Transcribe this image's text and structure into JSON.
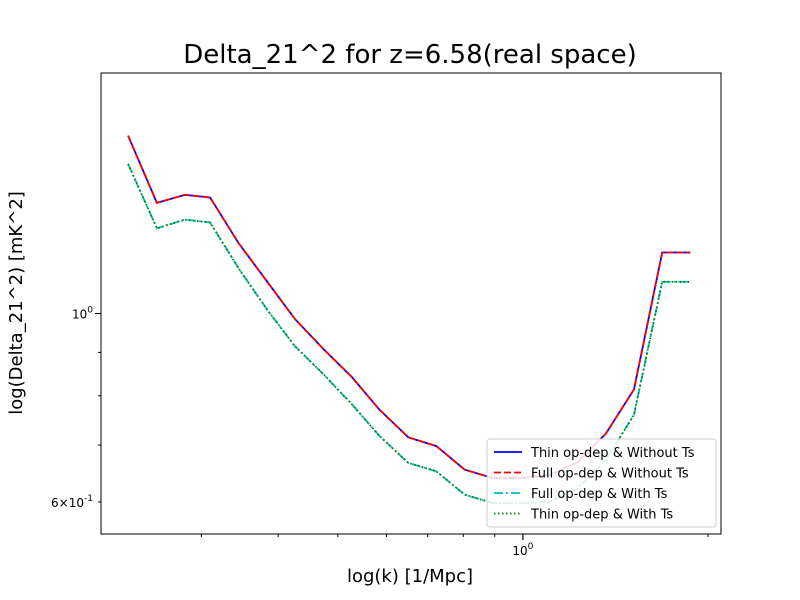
{
  "chart_data": {
    "type": "line",
    "title": "Delta_21^2 for z=6.58(real space)",
    "xlabel": "log(k) [1/Mpc]",
    "ylabel": "log(Delta_21^2) [mK^2]",
    "xscale": "log",
    "yscale": "log",
    "xlim": [
      0.206,
      2.1
    ],
    "ylim": [
      0.55,
      1.92
    ],
    "x_tick_labels": [
      {
        "label": "10^0",
        "value": 1.0
      }
    ],
    "y_tick_labels": [
      {
        "label": "10^0",
        "value": 1.0
      },
      {
        "label": "6×10^-1",
        "value": 0.6
      }
    ],
    "x": [
      0.228,
      0.254,
      0.282,
      0.31,
      0.345,
      0.384,
      0.426,
      0.474,
      0.527,
      0.585,
      0.651,
      0.723,
      0.804,
      0.893,
      0.993,
      1.104,
      1.227,
      1.364,
      1.516,
      1.685,
      1.873
    ],
    "series": [
      {
        "name": "Thin op-dep & Without Ts",
        "color": "#0000ff",
        "dash": "solid",
        "values": [
          1.62,
          1.35,
          1.38,
          1.37,
          1.21,
          1.09,
          0.985,
          0.908,
          0.842,
          0.77,
          0.715,
          0.698,
          0.655,
          0.64,
          0.64,
          0.645,
          0.668,
          0.722,
          0.814,
          1.18,
          1.18
        ]
      },
      {
        "name": "Full op-dep & Without Ts",
        "color": "#ff0000",
        "dash": "dashed",
        "values": [
          1.62,
          1.35,
          1.38,
          1.37,
          1.21,
          1.09,
          0.985,
          0.908,
          0.842,
          0.77,
          0.715,
          0.698,
          0.655,
          0.64,
          0.64,
          0.645,
          0.668,
          0.722,
          0.814,
          1.18,
          1.18
        ]
      },
      {
        "name": "Full op-dep & With Ts",
        "color": "#00bfbf",
        "dash": "dashdot",
        "values": [
          1.5,
          1.26,
          1.29,
          1.28,
          1.13,
          1.01,
          0.915,
          0.848,
          0.782,
          0.717,
          0.667,
          0.652,
          0.612,
          0.598,
          0.598,
          0.6,
          0.622,
          0.672,
          0.76,
          1.09,
          1.09
        ]
      },
      {
        "name": "Thin op-dep & With Ts",
        "color": "#008000",
        "dash": "dotted",
        "values": [
          1.5,
          1.26,
          1.29,
          1.28,
          1.13,
          1.01,
          0.915,
          0.848,
          0.782,
          0.717,
          0.667,
          0.652,
          0.612,
          0.598,
          0.598,
          0.6,
          0.622,
          0.672,
          0.76,
          1.09,
          1.09
        ]
      }
    ],
    "legend_position": "lower-right",
    "grid": false
  }
}
